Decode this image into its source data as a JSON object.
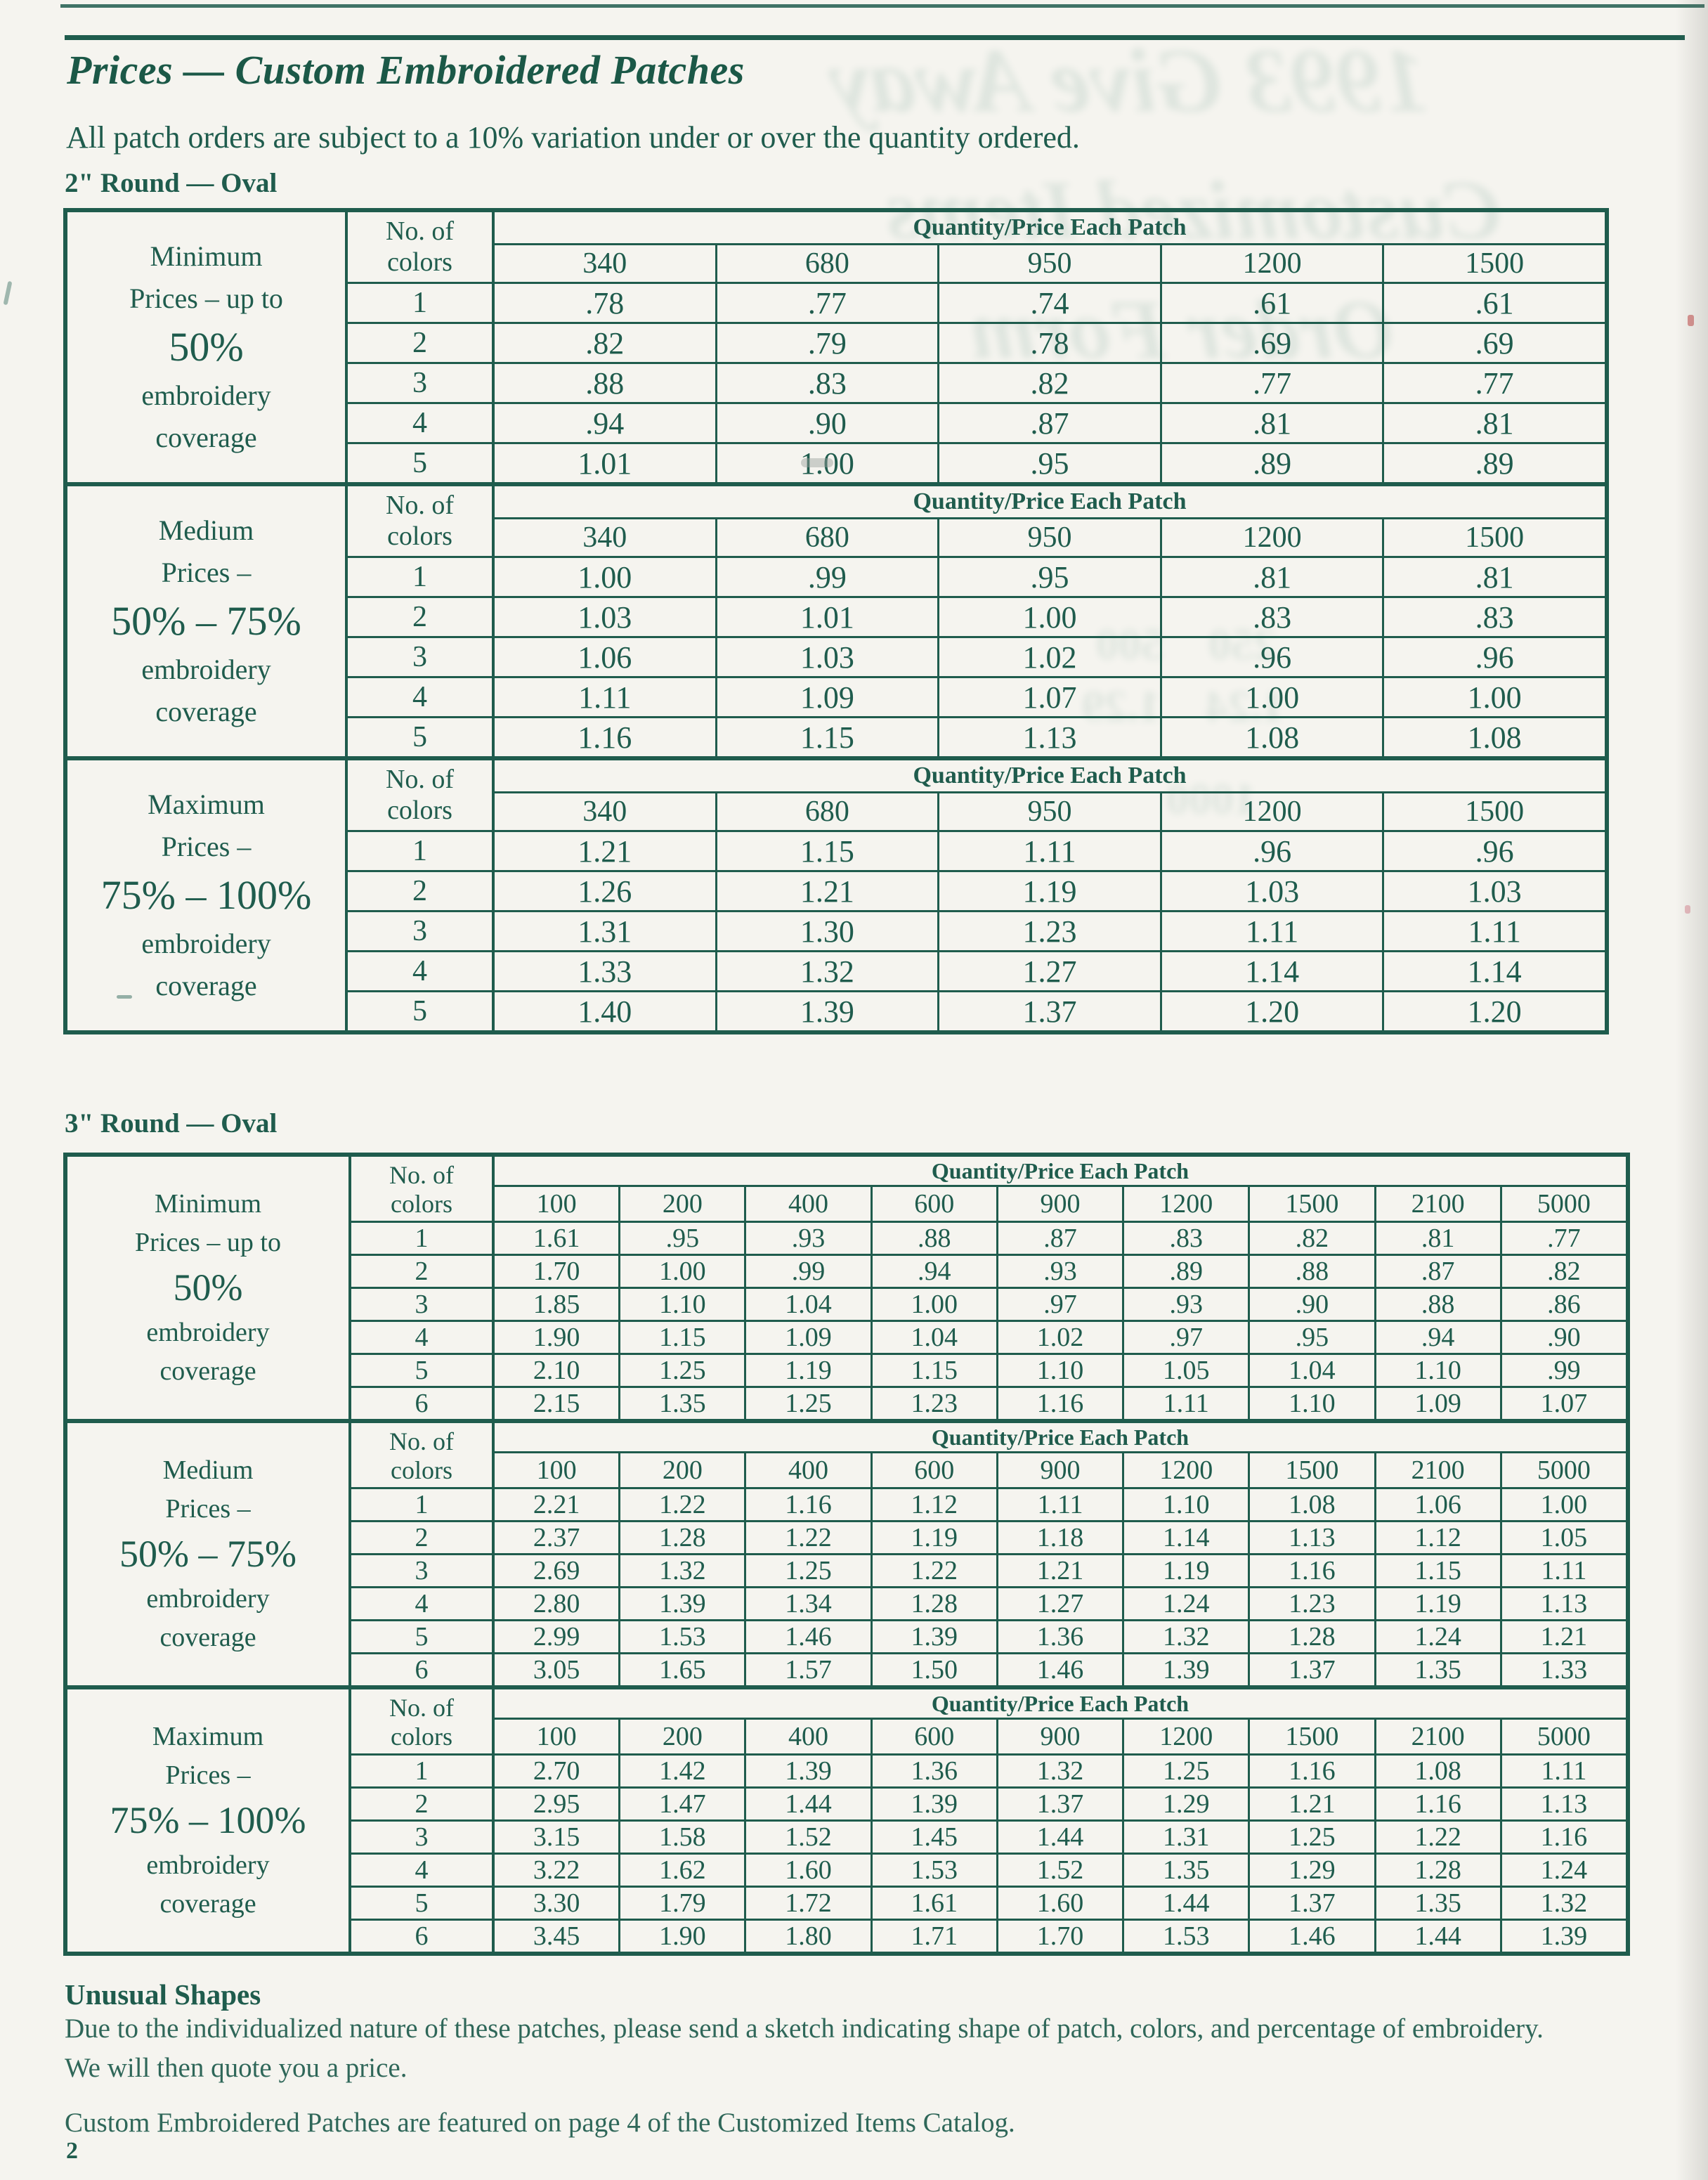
{
  "page": {
    "title": "Prices — Custom Embroidered Patches",
    "subtitle": "All patch orders are subject to a 10% variation under or over the quantity ordered.",
    "page_number": "2",
    "ink_color": "#1f5c4d",
    "paper_color": "#f5f4ef"
  },
  "sections": [
    {
      "heading": "2\" Round — Oval",
      "tables": [
        {
          "label": {
            "top": [
              "Minimum",
              "Prices – up to"
            ],
            "big": "50%",
            "bottom": [
              "embroidery",
              "coverage"
            ]
          },
          "col_header": [
            "No. of",
            "colors"
          ],
          "qty_header": "Quantity/Price Each Patch",
          "quantities": [
            "340",
            "680",
            "950",
            "1200",
            "1500"
          ],
          "rows": [
            {
              "colors": "1",
              "prices": [
                ".78",
                ".77",
                ".74",
                ".61",
                ".61"
              ]
            },
            {
              "colors": "2",
              "prices": [
                ".82",
                ".79",
                ".78",
                ".69",
                ".69"
              ]
            },
            {
              "colors": "3",
              "prices": [
                ".88",
                ".83",
                ".82",
                ".77",
                ".77"
              ]
            },
            {
              "colors": "4",
              "prices": [
                ".94",
                ".90",
                ".87",
                ".81",
                ".81"
              ]
            },
            {
              "colors": "5",
              "prices": [
                "1.01",
                "1.00",
                ".95",
                ".89",
                ".89"
              ]
            }
          ]
        },
        {
          "label": {
            "top": [
              "Medium",
              "Prices –"
            ],
            "big": "50% – 75%",
            "bottom": [
              "embroidery",
              "coverage"
            ]
          },
          "col_header": [
            "No. of",
            "colors"
          ],
          "qty_header": "Quantity/Price Each Patch",
          "quantities": [
            "340",
            "680",
            "950",
            "1200",
            "1500"
          ],
          "rows": [
            {
              "colors": "1",
              "prices": [
                "1.00",
                ".99",
                ".95",
                ".81",
                ".81"
              ]
            },
            {
              "colors": "2",
              "prices": [
                "1.03",
                "1.01",
                "1.00",
                ".83",
                ".83"
              ]
            },
            {
              "colors": "3",
              "prices": [
                "1.06",
                "1.03",
                "1.02",
                ".96",
                ".96"
              ]
            },
            {
              "colors": "4",
              "prices": [
                "1.11",
                "1.09",
                "1.07",
                "1.00",
                "1.00"
              ]
            },
            {
              "colors": "5",
              "prices": [
                "1.16",
                "1.15",
                "1.13",
                "1.08",
                "1.08"
              ]
            }
          ]
        },
        {
          "label": {
            "top": [
              "Maximum",
              "Prices –"
            ],
            "big": "75% – 100%",
            "bottom": [
              "embroidery",
              "coverage"
            ]
          },
          "col_header": [
            "No. of",
            "colors"
          ],
          "qty_header": "Quantity/Price Each Patch",
          "quantities": [
            "340",
            "680",
            "950",
            "1200",
            "1500"
          ],
          "rows": [
            {
              "colors": "1",
              "prices": [
                "1.21",
                "1.15",
                "1.11",
                ".96",
                ".96"
              ]
            },
            {
              "colors": "2",
              "prices": [
                "1.26",
                "1.21",
                "1.19",
                "1.03",
                "1.03"
              ]
            },
            {
              "colors": "3",
              "prices": [
                "1.31",
                "1.30",
                "1.23",
                "1.11",
                "1.11"
              ]
            },
            {
              "colors": "4",
              "prices": [
                "1.33",
                "1.32",
                "1.27",
                "1.14",
                "1.14"
              ]
            },
            {
              "colors": "5",
              "prices": [
                "1.40",
                "1.39",
                "1.37",
                "1.20",
                "1.20"
              ]
            }
          ]
        }
      ]
    },
    {
      "heading": "3\" Round — Oval",
      "tables": [
        {
          "label": {
            "top": [
              "Minimum",
              "Prices – up to"
            ],
            "big": "50%",
            "bottom": [
              "embroidery",
              "coverage"
            ]
          },
          "col_header": [
            "No. of",
            "colors"
          ],
          "qty_header": "Quantity/Price Each Patch",
          "quantities": [
            "100",
            "200",
            "400",
            "600",
            "900",
            "1200",
            "1500",
            "2100",
            "5000"
          ],
          "rows": [
            {
              "colors": "1",
              "prices": [
                "1.61",
                ".95",
                ".93",
                ".88",
                ".87",
                ".83",
                ".82",
                ".81",
                ".77"
              ]
            },
            {
              "colors": "2",
              "prices": [
                "1.70",
                "1.00",
                ".99",
                ".94",
                ".93",
                ".89",
                ".88",
                ".87",
                ".82"
              ]
            },
            {
              "colors": "3",
              "prices": [
                "1.85",
                "1.10",
                "1.04",
                "1.00",
                ".97",
                ".93",
                ".90",
                ".88",
                ".86"
              ]
            },
            {
              "colors": "4",
              "prices": [
                "1.90",
                "1.15",
                "1.09",
                "1.04",
                "1.02",
                ".97",
                ".95",
                ".94",
                ".90"
              ]
            },
            {
              "colors": "5",
              "prices": [
                "2.10",
                "1.25",
                "1.19",
                "1.15",
                "1.10",
                "1.05",
                "1.04",
                "1.10",
                ".99"
              ]
            },
            {
              "colors": "6",
              "prices": [
                "2.15",
                "1.35",
                "1.25",
                "1.23",
                "1.16",
                "1.11",
                "1.10",
                "1.09",
                "1.07"
              ]
            }
          ]
        },
        {
          "label": {
            "top": [
              "Medium",
              "Prices –"
            ],
            "big": "50% – 75%",
            "bottom": [
              "embroidery",
              "coverage"
            ]
          },
          "col_header": [
            "No. of",
            "colors"
          ],
          "qty_header": "Quantity/Price Each Patch",
          "quantities": [
            "100",
            "200",
            "400",
            "600",
            "900",
            "1200",
            "1500",
            "2100",
            "5000"
          ],
          "rows": [
            {
              "colors": "1",
              "prices": [
                "2.21",
                "1.22",
                "1.16",
                "1.12",
                "1.11",
                "1.10",
                "1.08",
                "1.06",
                "1.00"
              ]
            },
            {
              "colors": "2",
              "prices": [
                "2.37",
                "1.28",
                "1.22",
                "1.19",
                "1.18",
                "1.14",
                "1.13",
                "1.12",
                "1.05"
              ]
            },
            {
              "colors": "3",
              "prices": [
                "2.69",
                "1.32",
                "1.25",
                "1.22",
                "1.21",
                "1.19",
                "1.16",
                "1.15",
                "1.11"
              ]
            },
            {
              "colors": "4",
              "prices": [
                "2.80",
                "1.39",
                "1.34",
                "1.28",
                "1.27",
                "1.24",
                "1.23",
                "1.19",
                "1.13"
              ]
            },
            {
              "colors": "5",
              "prices": [
                "2.99",
                "1.53",
                "1.46",
                "1.39",
                "1.36",
                "1.32",
                "1.28",
                "1.24",
                "1.21"
              ]
            },
            {
              "colors": "6",
              "prices": [
                "3.05",
                "1.65",
                "1.57",
                "1.50",
                "1.46",
                "1.39",
                "1.37",
                "1.35",
                "1.33"
              ]
            }
          ]
        },
        {
          "label": {
            "top": [
              "Maximum",
              "Prices –"
            ],
            "big": "75% – 100%",
            "bottom": [
              "embroidery",
              "coverage"
            ]
          },
          "col_header": [
            "No. of",
            "colors"
          ],
          "qty_header": "Quantity/Price Each Patch",
          "quantities": [
            "100",
            "200",
            "400",
            "600",
            "900",
            "1200",
            "1500",
            "2100",
            "5000"
          ],
          "rows": [
            {
              "colors": "1",
              "prices": [
                "2.70",
                "1.42",
                "1.39",
                "1.36",
                "1.32",
                "1.25",
                "1.16",
                "1.08",
                "1.11"
              ]
            },
            {
              "colors": "2",
              "prices": [
                "2.95",
                "1.47",
                "1.44",
                "1.39",
                "1.37",
                "1.29",
                "1.21",
                "1.16",
                "1.13"
              ]
            },
            {
              "colors": "3",
              "prices": [
                "3.15",
                "1.58",
                "1.52",
                "1.45",
                "1.44",
                "1.31",
                "1.25",
                "1.22",
                "1.16"
              ]
            },
            {
              "colors": "4",
              "prices": [
                "3.22",
                "1.62",
                "1.60",
                "1.53",
                "1.52",
                "1.35",
                "1.29",
                "1.28",
                "1.24"
              ]
            },
            {
              "colors": "5",
              "prices": [
                "3.30",
                "1.79",
                "1.72",
                "1.61",
                "1.60",
                "1.44",
                "1.37",
                "1.35",
                "1.32"
              ]
            },
            {
              "colors": "6",
              "prices": [
                "3.45",
                "1.90",
                "1.80",
                "1.71",
                "1.70",
                "1.53",
                "1.46",
                "1.44",
                "1.39"
              ]
            }
          ]
        }
      ]
    }
  ],
  "footer": {
    "heading": "Unusual Shapes",
    "line1": "Due to the individualized nature of these patches, please send a sketch indicating shape of patch, colors, and percentage of embroidery.",
    "line2": "We will then quote you a price.",
    "catalog_note": "Custom Embroidered Patches are featured on page 4 of the Customized Items Catalog."
  },
  "ghosts": [
    "1993 Give Away",
    "Customized Items",
    "Order Form",
    "250    500",
    "1.24    1.29",
    "1000"
  ]
}
